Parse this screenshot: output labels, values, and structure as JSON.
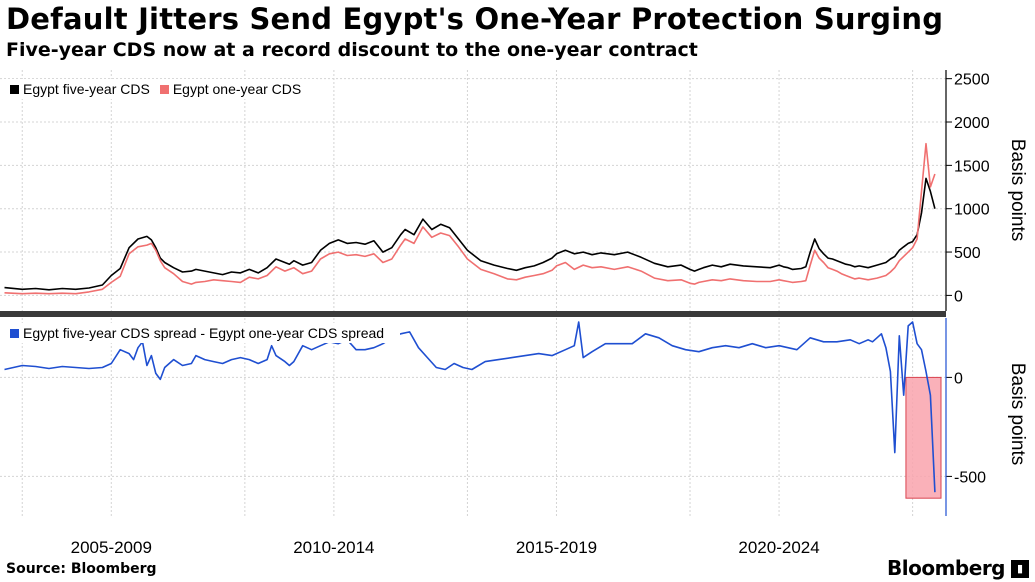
{
  "header": {
    "title": "Default Jitters Send Egypt's One-Year Protection Surging",
    "subtitle": "Five-year CDS now at a record discount to the one-year contract"
  },
  "footer": {
    "source": "Source: Bloomberg",
    "brand": "Bloomberg"
  },
  "colors": {
    "five_year": "#000000",
    "one_year": "#f07070",
    "spread": "#1f4fd1",
    "highlight_fill": "#f9a3ad",
    "highlight_stroke": "#d9434f",
    "grid": "#d4d4d4"
  },
  "icons": {
    "brand_mark": "bloomberg-terminal-icon"
  },
  "chart_data": [
    {
      "type": "line",
      "legend": [
        "Egypt five-year CDS",
        "Egypt one-year CDS"
      ],
      "ylabel": "Basis points",
      "ylim": [
        -180,
        2600
      ],
      "yticks": [
        "2500",
        "2000",
        "1500",
        "1000",
        "500",
        "0"
      ],
      "ytick_values": [
        2500,
        2000,
        1500,
        1000,
        500,
        0
      ],
      "xlim": [
        2004.5,
        2025.75
      ],
      "xtick_labels": [
        "2005-2009",
        "2010-2014",
        "2015-2019",
        "2020-2024"
      ],
      "xtick_positions": [
        2007,
        2012,
        2017,
        2022
      ],
      "x_gridlines": [
        2005,
        2007,
        2010,
        2012,
        2015,
        2017,
        2020,
        2022,
        2025
      ],
      "series": [
        {
          "name": "Egypt five-year CDS",
          "x": [
            2004.6,
            2005.0,
            2005.3,
            2005.6,
            2005.9,
            2006.2,
            2006.5,
            2006.8,
            2007.0,
            2007.2,
            2007.4,
            2007.6,
            2007.8,
            2007.9,
            2008.0,
            2008.1,
            2008.2,
            2008.4,
            2008.6,
            2008.8,
            2008.9,
            2009.1,
            2009.3,
            2009.5,
            2009.7,
            2009.9,
            2010.1,
            2010.3,
            2010.5,
            2010.7,
            2010.9,
            2011.0,
            2011.1,
            2011.3,
            2011.5,
            2011.7,
            2011.9,
            2012.1,
            2012.3,
            2012.5,
            2012.7,
            2012.9,
            2013.1,
            2013.3,
            2013.5,
            2013.6,
            2013.8,
            2014.0,
            2014.2,
            2014.4,
            2014.6,
            2014.8,
            2015.0,
            2015.3,
            2015.6,
            2015.9,
            2016.1,
            2016.3,
            2016.5,
            2016.7,
            2016.9,
            2017.0,
            2017.2,
            2017.4,
            2017.6,
            2017.8,
            2018.0,
            2018.3,
            2018.6,
            2018.9,
            2019.2,
            2019.5,
            2019.8,
            2020.0,
            2020.1,
            2020.2,
            2020.3,
            2020.5,
            2020.7,
            2020.9,
            2021.2,
            2021.5,
            2021.8,
            2022.0,
            2022.1,
            2022.2,
            2022.3,
            2022.5,
            2022.6,
            2022.7,
            2022.8,
            2022.9,
            2023.0,
            2023.1,
            2023.2,
            2023.3,
            2023.4,
            2023.5,
            2023.6,
            2023.7,
            2023.8,
            2024.0,
            2024.2,
            2024.4,
            2024.5,
            2024.6,
            2024.7,
            2024.8,
            2024.9,
            2025.0,
            2025.1,
            2025.2,
            2025.3,
            2025.4,
            2025.5
          ],
          "values": [
            90,
            70,
            80,
            65,
            80,
            70,
            85,
            120,
            230,
            310,
            550,
            650,
            680,
            640,
            550,
            430,
            380,
            320,
            270,
            280,
            300,
            280,
            260,
            240,
            270,
            260,
            300,
            260,
            320,
            420,
            380,
            360,
            400,
            350,
            380,
            520,
            600,
            640,
            600,
            610,
            590,
            630,
            500,
            550,
            700,
            760,
            700,
            880,
            760,
            820,
            780,
            650,
            520,
            400,
            350,
            310,
            290,
            320,
            340,
            380,
            430,
            480,
            520,
            480,
            500,
            470,
            490,
            470,
            500,
            440,
            370,
            330,
            350,
            300,
            280,
            300,
            320,
            350,
            330,
            360,
            340,
            330,
            320,
            350,
            330,
            320,
            300,
            310,
            330,
            500,
            650,
            540,
            480,
            430,
            420,
            400,
            380,
            360,
            350,
            330,
            340,
            320,
            350,
            380,
            420,
            450,
            520,
            560,
            600,
            620,
            700,
            950,
            1350,
            1200,
            1000
          ],
          "color": "#000000"
        },
        {
          "name": "Egypt one-year CDS",
          "x": [
            2004.6,
            2005.0,
            2005.3,
            2005.6,
            2005.9,
            2006.2,
            2006.5,
            2006.8,
            2007.0,
            2007.2,
            2007.4,
            2007.6,
            2007.8,
            2007.9,
            2008.0,
            2008.1,
            2008.2,
            2008.4,
            2008.6,
            2008.8,
            2008.9,
            2009.1,
            2009.3,
            2009.5,
            2009.7,
            2009.9,
            2010.1,
            2010.3,
            2010.5,
            2010.7,
            2010.9,
            2011.0,
            2011.1,
            2011.3,
            2011.5,
            2011.7,
            2011.9,
            2012.1,
            2012.3,
            2012.5,
            2012.7,
            2012.9,
            2013.1,
            2013.3,
            2013.5,
            2013.6,
            2013.8,
            2014.0,
            2014.2,
            2014.4,
            2014.6,
            2014.8,
            2015.0,
            2015.3,
            2015.6,
            2015.9,
            2016.1,
            2016.3,
            2016.5,
            2016.7,
            2016.9,
            2017.0,
            2017.2,
            2017.4,
            2017.6,
            2017.8,
            2018.0,
            2018.3,
            2018.6,
            2018.9,
            2019.2,
            2019.5,
            2019.8,
            2020.0,
            2020.1,
            2020.2,
            2020.3,
            2020.5,
            2020.7,
            2020.9,
            2021.2,
            2021.5,
            2021.8,
            2022.0,
            2022.1,
            2022.2,
            2022.3,
            2022.5,
            2022.6,
            2022.7,
            2022.8,
            2022.9,
            2023.0,
            2023.1,
            2023.2,
            2023.3,
            2023.4,
            2023.5,
            2023.6,
            2023.7,
            2023.8,
            2024.0,
            2024.2,
            2024.4,
            2024.5,
            2024.6,
            2024.7,
            2024.8,
            2024.9,
            2025.0,
            2025.1,
            2025.2,
            2025.3,
            2025.4,
            2025.5
          ],
          "values": [
            30,
            20,
            25,
            20,
            25,
            20,
            40,
            70,
            150,
            220,
            480,
            560,
            580,
            600,
            520,
            400,
            320,
            250,
            160,
            130,
            150,
            160,
            180,
            170,
            160,
            150,
            210,
            190,
            230,
            330,
            280,
            300,
            320,
            250,
            280,
            420,
            480,
            500,
            460,
            470,
            450,
            480,
            380,
            420,
            580,
            650,
            600,
            790,
            670,
            720,
            690,
            560,
            420,
            300,
            250,
            190,
            180,
            210,
            230,
            250,
            290,
            340,
            380,
            300,
            350,
            320,
            330,
            300,
            330,
            280,
            200,
            170,
            180,
            140,
            130,
            150,
            160,
            180,
            170,
            190,
            170,
            160,
            160,
            180,
            170,
            160,
            150,
            160,
            170,
            350,
            520,
            430,
            380,
            320,
            300,
            280,
            250,
            230,
            210,
            190,
            200,
            180,
            200,
            230,
            270,
            320,
            400,
            450,
            500,
            550,
            650,
            1200,
            1750,
            1250,
            1400
          ],
          "color": "#f07070"
        }
      ]
    },
    {
      "type": "line",
      "legend": [
        "Egypt five-year CDS spread - Egypt one-year CDS spread"
      ],
      "ylabel": "Basis points",
      "ylim": [
        -700,
        300
      ],
      "yticks": [
        "0",
        "-500"
      ],
      "ytick_values": [
        0,
        -500
      ],
      "xlim": [
        2004.5,
        2025.75
      ],
      "xtick_labels": [
        "2005-2009",
        "2010-2014",
        "2015-2019",
        "2020-2024"
      ],
      "xtick_positions": [
        2007,
        2012,
        2017,
        2022
      ],
      "x_gridlines": [
        2005,
        2007,
        2010,
        2012,
        2015,
        2017,
        2020,
        2022,
        2025
      ],
      "highlight_range": {
        "x0": 2024.85,
        "x1": 2025.75,
        "y0": -610,
        "y1": 0
      },
      "series": [
        {
          "name": "Egypt five-year CDS spread - Egypt one-year CDS spread",
          "x": [
            2004.6,
            2005.0,
            2005.3,
            2005.6,
            2005.9,
            2006.2,
            2006.5,
            2006.8,
            2007.0,
            2007.2,
            2007.4,
            2007.5,
            2007.6,
            2007.7,
            2007.8,
            2007.9,
            2008.0,
            2008.1,
            2008.2,
            2008.4,
            2008.6,
            2008.8,
            2008.9,
            2009.1,
            2009.3,
            2009.5,
            2009.7,
            2009.9,
            2010.1,
            2010.3,
            2010.5,
            2010.6,
            2010.7,
            2010.9,
            2011.0,
            2011.1,
            2011.3,
            2011.5,
            2011.7,
            2011.9,
            2012.1,
            2012.3,
            2012.5,
            2012.7,
            2012.9,
            2013.1,
            2013.3,
            2013.5,
            2013.7,
            2013.9,
            2014.1,
            2014.3,
            2014.5,
            2014.7,
            2014.9,
            2015.1,
            2015.4,
            2015.7,
            2016.0,
            2016.3,
            2016.6,
            2016.9,
            2017.2,
            2017.4,
            2017.5,
            2017.6,
            2017.8,
            2018.1,
            2018.4,
            2018.7,
            2019.0,
            2019.3,
            2019.6,
            2019.9,
            2020.2,
            2020.5,
            2020.8,
            2021.1,
            2021.4,
            2021.7,
            2022.0,
            2022.2,
            2022.4,
            2022.7,
            2023.0,
            2023.3,
            2023.6,
            2023.8,
            2024.0,
            2024.1,
            2024.2,
            2024.3,
            2024.4,
            2024.5,
            2024.6,
            2024.7,
            2024.8,
            2024.9,
            2025.0,
            2025.1,
            2025.2,
            2025.3,
            2025.4,
            2025.5
          ],
          "values": [
            40,
            60,
            55,
            45,
            55,
            50,
            45,
            50,
            70,
            140,
            120,
            90,
            150,
            180,
            60,
            110,
            20,
            -10,
            50,
            90,
            60,
            70,
            110,
            90,
            80,
            70,
            90,
            100,
            90,
            70,
            90,
            160,
            110,
            80,
            60,
            80,
            160,
            140,
            160,
            180,
            170,
            190,
            140,
            140,
            150,
            170,
            200,
            220,
            230,
            150,
            100,
            50,
            40,
            70,
            50,
            40,
            80,
            90,
            100,
            110,
            120,
            110,
            140,
            160,
            280,
            100,
            130,
            170,
            170,
            170,
            220,
            200,
            160,
            140,
            130,
            150,
            160,
            150,
            170,
            150,
            160,
            150,
            140,
            200,
            180,
            180,
            190,
            170,
            190,
            180,
            200,
            220,
            150,
            30,
            -380,
            210,
            -90,
            260,
            280,
            170,
            140,
            30,
            -90,
            -580
          ],
          "color": "#1f4fd1"
        }
      ]
    }
  ]
}
